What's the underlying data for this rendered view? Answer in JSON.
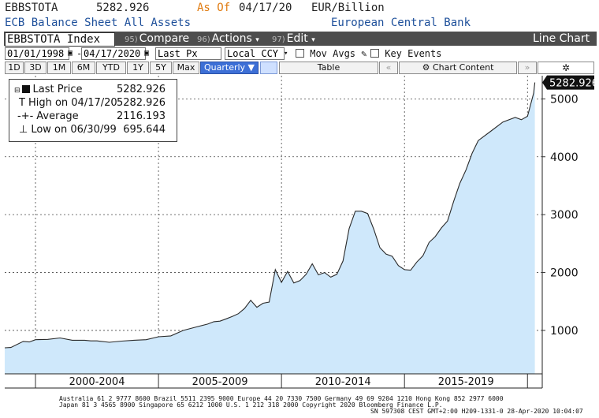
{
  "header": {
    "ticker": "EBBSTOTA",
    "last_value": "5282.926",
    "as_of_label": "As Of",
    "as_of_date": "04/17/20",
    "units": "EUR/Billion",
    "description": "ECB Balance Sheet All Assets",
    "source": "European Central Bank"
  },
  "toolbar1": {
    "security": "EBBSTOTA Index",
    "compare_num": "95)",
    "compare": "Compare",
    "actions_num": "96)",
    "actions": "Actions",
    "edit_num": "97)",
    "edit": "Edit",
    "chart_type": "Line Chart"
  },
  "toolbar2": {
    "start_date": "01/01/1998",
    "end_date": "04/17/2020",
    "field": "Last Px",
    "currency": "Local CCY",
    "mov_avgs": "Mov Avgs",
    "key_events": "Key Events"
  },
  "toolbar3": {
    "ranges": [
      "1D",
      "3D",
      "1M",
      "6M",
      "YTD",
      "1Y",
      "5Y",
      "Max"
    ],
    "frequency": "Quarterly",
    "table": "Table",
    "chart_content": "Chart Content"
  },
  "legend": {
    "last_label": "Last Price",
    "last_value": "5282.926",
    "high_label": "High on 04/17/20",
    "high_value": "5282.926",
    "avg_label": "Average",
    "avg_value": "2116.193",
    "low_label": "Low on 06/30/99",
    "low_value": "695.644"
  },
  "colors": {
    "fill": "#cfe8fb",
    "line": "#2a2a2a",
    "toolbar": "#4d4d4d",
    "selected": "#3d6fd6",
    "header_blue": "#1d4f9a",
    "orange": "#e07b10"
  },
  "footer": {
    "line1": "Australia 61 2 9777 8600 Brazil 5511 2395 9000 Europe 44 20 7330 7500 Germany 49 69 9204 1210 Hong Kong 852 2977 6000",
    "line2": "Japan 81 3 4565 8900      Singapore 65 6212 1000      U.S. 1 212 318 2000      Copyright 2020 Bloomberg Finance L.P.",
    "line3": "SN 597308 CEST GMT+2:00 H209-1331-0 28-Apr-2020 10:04:07"
  },
  "chart_data": {
    "type": "area",
    "title": "ECB Balance Sheet All Assets",
    "ylabel": "EUR/Billion",
    "ylim": [
      250,
      5400
    ],
    "xlim": [
      1998.75,
      2020.6
    ],
    "y_ticks": [
      1000,
      2000,
      3000,
      4000,
      5000
    ],
    "x_period_labels": [
      "2000-2004",
      "2005-2009",
      "2010-2014",
      "2015-2019"
    ],
    "last_value_tag": "5282.926",
    "grid": true,
    "series": [
      {
        "name": "Last Price",
        "x": [
          1998.75,
          1999.0,
          1999.5,
          1999.75,
          2000.0,
          2000.5,
          2001.0,
          2001.5,
          2002.0,
          2002.25,
          2002.5,
          2003.0,
          2003.5,
          2004.0,
          2004.5,
          2005.0,
          2005.5,
          2006.0,
          2006.5,
          2007.0,
          2007.25,
          2007.5,
          2007.75,
          2008.0,
          2008.25,
          2008.5,
          2008.75,
          2009.0,
          2009.25,
          2009.5,
          2009.75,
          2010.0,
          2010.25,
          2010.5,
          2010.75,
          2011.0,
          2011.25,
          2011.5,
          2011.75,
          2012.0,
          2012.25,
          2012.5,
          2012.75,
          2013.0,
          2013.25,
          2013.5,
          2013.75,
          2014.0,
          2014.25,
          2014.5,
          2014.75,
          2015.0,
          2015.25,
          2015.5,
          2015.75,
          2016.0,
          2016.25,
          2016.5,
          2016.75,
          2017.0,
          2017.25,
          2017.5,
          2017.75,
          2018.0,
          2018.5,
          2019.0,
          2019.5,
          2019.75,
          2020.0,
          2020.25,
          2020.3
        ],
        "values": [
          700,
          705,
          810,
          800,
          840,
          845,
          870,
          830,
          830,
          820,
          820,
          795,
          815,
          830,
          840,
          890,
          905,
          1000,
          1055,
          1110,
          1150,
          1160,
          1200,
          1240,
          1290,
          1380,
          1520,
          1400,
          1470,
          1490,
          2050,
          1830,
          2020,
          1820,
          1860,
          1970,
          2150,
          1960,
          2000,
          1920,
          1970,
          2200,
          2760,
          3060,
          3060,
          3020,
          2750,
          2430,
          2320,
          2280,
          2120,
          2050,
          2040,
          2180,
          2290,
          2520,
          2620,
          2770,
          2890,
          3230,
          3540,
          3770,
          4060,
          4280,
          4440,
          4600,
          4680,
          4640,
          4700,
          5100,
          5282.926
        ]
      }
    ]
  }
}
